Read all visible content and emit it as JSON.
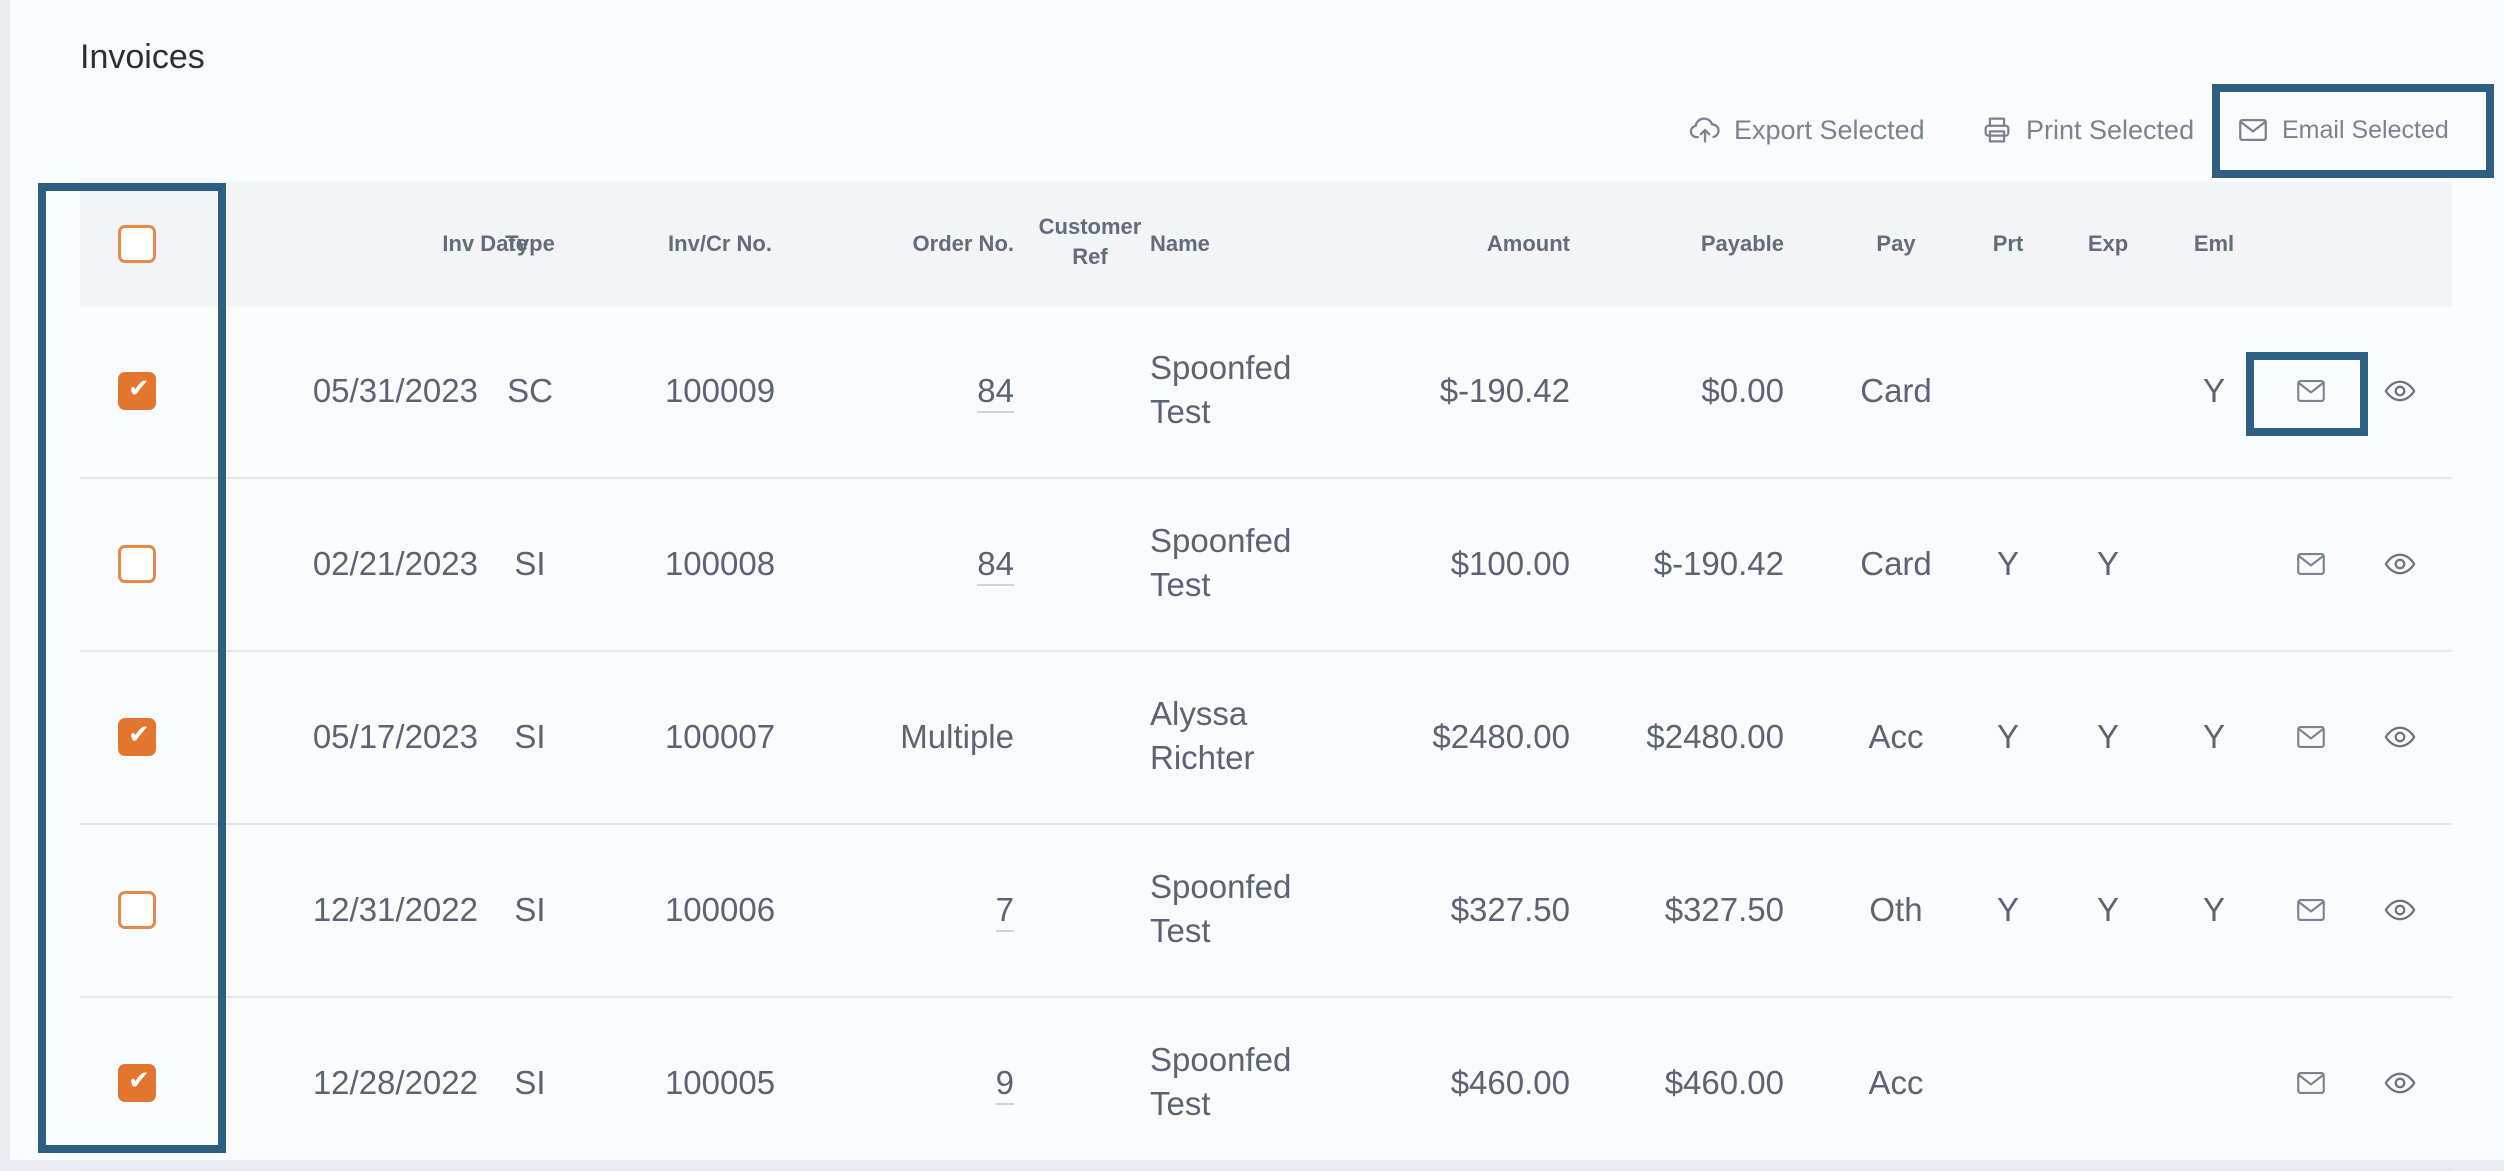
{
  "page": {
    "title": "Invoices"
  },
  "toolbar": {
    "export_label": "Export Selected",
    "print_label": "Print Selected",
    "email_label": "Email Selected"
  },
  "table": {
    "headers": {
      "inv_date": "Inv Date",
      "type": "Type",
      "inv_no": "Inv/Cr No.",
      "order_no": "Order No.",
      "customer_ref_1": "Customer",
      "customer_ref_2": "Ref",
      "name": "Name",
      "amount": "Amount",
      "payable": "Payable",
      "pay": "Pay",
      "prt": "Prt",
      "exp": "Exp",
      "eml": "Eml"
    },
    "rows": [
      {
        "checked": true,
        "date": "05/31/2023",
        "type": "SC",
        "inv_no": "100009",
        "order": "84",
        "order_link": true,
        "ref": "",
        "name_1": "Spoonfed",
        "name_2": "Test",
        "amount": "$-190.42",
        "payable": "$0.00",
        "pay": "Card",
        "prt": "",
        "exp": "",
        "eml": "Y"
      },
      {
        "checked": false,
        "date": "02/21/2023",
        "type": "SI",
        "inv_no": "100008",
        "order": "84",
        "order_link": true,
        "ref": "",
        "name_1": "Spoonfed",
        "name_2": "Test",
        "amount": "$100.00",
        "payable": "$-190.42",
        "pay": "Card",
        "prt": "Y",
        "exp": "Y",
        "eml": ""
      },
      {
        "checked": true,
        "date": "05/17/2023",
        "type": "SI",
        "inv_no": "100007",
        "order": "Multiple",
        "order_link": false,
        "ref": "",
        "name_1": "Alyssa",
        "name_2": "Richter",
        "amount": "$2480.00",
        "payable": "$2480.00",
        "pay": "Acc",
        "prt": "Y",
        "exp": "Y",
        "eml": "Y"
      },
      {
        "checked": false,
        "date": "12/31/2022",
        "type": "SI",
        "inv_no": "100006",
        "order": "7",
        "order_link": true,
        "ref": "",
        "name_1": "Spoonfed",
        "name_2": "Test",
        "amount": "$327.50",
        "payable": "$327.50",
        "pay": "Oth",
        "prt": "Y",
        "exp": "Y",
        "eml": "Y"
      },
      {
        "checked": true,
        "date": "12/28/2022",
        "type": "SI",
        "inv_no": "100005",
        "order": "9",
        "order_link": true,
        "ref": "",
        "name_1": "Spoonfed",
        "name_2": "Test",
        "amount": "$460.00",
        "payable": "$460.00",
        "pay": "Acc",
        "prt": "",
        "exp": "",
        "eml": ""
      }
    ]
  },
  "colors": {
    "accent": "#e2762f",
    "highlight": "#2c5f80",
    "text": "#5b6474"
  },
  "icons": [
    "cloud-upload-icon",
    "printer-icon",
    "mail-icon",
    "eye-icon"
  ]
}
